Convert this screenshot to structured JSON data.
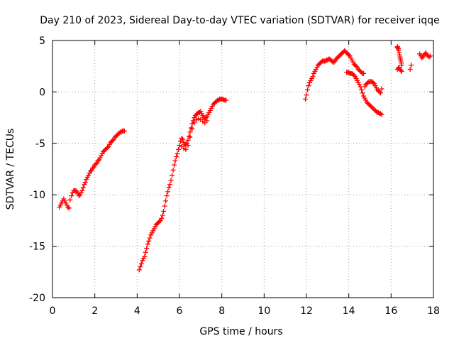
{
  "chart_data": {
    "type": "scatter",
    "title": "Day 210 of 2023, Sidereal Day-to-day VTEC variation (SDTVAR) for receiver iqqe",
    "xlabel": "GPS time / hours",
    "ylabel": "SDTVAR / TECUs",
    "xlim": [
      0,
      18
    ],
    "ylim": [
      -20,
      5
    ],
    "xticks": [
      0,
      2,
      4,
      6,
      8,
      10,
      12,
      14,
      16,
      18
    ],
    "yticks": [
      5,
      0,
      -5,
      -10,
      -15,
      -20
    ],
    "xtick_labels": [
      "0",
      "2",
      "4",
      "6",
      "8",
      "10",
      "12",
      "14",
      "16",
      "18"
    ],
    "ytick_labels": [
      "5",
      "0",
      "-5",
      "-10",
      "-15",
      "-20"
    ],
    "grid": true,
    "marker": "+",
    "color": "#ff0000",
    "series": [
      {
        "name": "segment-1",
        "x": [
          0.33,
          0.38,
          0.43,
          0.48,
          0.53,
          0.58,
          0.63,
          0.68,
          0.73,
          0.78,
          0.83,
          0.9,
          0.95,
          1.0,
          1.05,
          1.1,
          1.15,
          1.2,
          1.25,
          1.3,
          1.35,
          1.4,
          1.45,
          1.5,
          1.55,
          1.6,
          1.65,
          1.7,
          1.75,
          1.8,
          1.85,
          1.9,
          1.95,
          2.0,
          2.05,
          2.1,
          2.15,
          2.2,
          2.25,
          2.3,
          2.35,
          2.4,
          2.45,
          2.5,
          2.55,
          2.6,
          2.65,
          2.7,
          2.75,
          2.8,
          2.85,
          2.9,
          2.95,
          3.0,
          3.05,
          3.1,
          3.15,
          3.2,
          3.25,
          3.3,
          3.35,
          3.4
        ],
        "y": [
          -11.2,
          -11.0,
          -10.8,
          -10.6,
          -10.4,
          -10.6,
          -10.8,
          -11.0,
          -11.2,
          -11.3,
          -10.5,
          -10.1,
          -9.8,
          -9.6,
          -9.6,
          -9.6,
          -9.7,
          -9.9,
          -10.1,
          -10.0,
          -9.8,
          -9.6,
          -9.3,
          -9.0,
          -8.8,
          -8.5,
          -8.3,
          -8.1,
          -7.9,
          -7.7,
          -7.6,
          -7.4,
          -7.3,
          -7.1,
          -7.0,
          -6.9,
          -6.7,
          -6.6,
          -6.4,
          -6.2,
          -6.0,
          -5.8,
          -5.7,
          -5.6,
          -5.5,
          -5.4,
          -5.3,
          -5.1,
          -4.9,
          -4.8,
          -4.7,
          -4.6,
          -4.4,
          -4.3,
          -4.2,
          -4.1,
          -4.0,
          -3.9,
          -3.9,
          -3.8,
          -3.8,
          -3.8
        ]
      },
      {
        "name": "segment-2",
        "x": [
          4.1,
          4.15,
          4.2,
          4.25,
          4.3,
          4.35,
          4.4,
          4.45,
          4.5,
          4.55,
          4.6,
          4.65,
          4.7,
          4.75,
          4.8,
          4.85,
          4.9,
          4.95,
          5.0,
          5.05,
          5.1,
          5.15,
          5.2,
          5.25,
          5.3,
          5.35,
          5.4,
          5.45,
          5.5,
          5.55,
          5.6,
          5.65,
          5.7,
          5.75,
          5.8,
          5.85,
          5.9,
          5.95,
          6.0,
          6.05,
          6.1,
          6.15,
          6.2,
          6.25,
          6.3,
          6.35,
          6.4,
          6.45,
          6.5,
          6.55,
          6.6,
          6.65,
          6.7,
          6.75,
          6.8,
          6.85,
          6.9,
          6.95,
          7.0,
          7.05,
          7.1,
          7.15,
          7.2,
          7.25,
          7.3,
          7.35,
          7.4,
          7.45,
          7.5,
          7.55,
          7.6,
          7.65,
          7.7,
          7.75,
          7.8,
          7.85,
          7.9,
          7.95,
          8.0,
          8.05,
          8.1,
          8.15,
          8.2,
          6.1,
          6.2,
          6.3,
          6.4,
          6.5,
          6.6,
          6.7,
          6.8,
          6.9,
          7.0,
          7.1,
          7.2,
          7.3
        ],
        "y": [
          -17.3,
          -17.0,
          -16.7,
          -16.4,
          -16.2,
          -16.0,
          -15.6,
          -15.2,
          -14.8,
          -14.5,
          -14.2,
          -13.9,
          -13.7,
          -13.5,
          -13.3,
          -13.1,
          -12.9,
          -12.8,
          -12.7,
          -12.6,
          -12.5,
          -12.3,
          -12.0,
          -11.6,
          -11.1,
          -10.6,
          -10.1,
          -9.7,
          -9.3,
          -9.0,
          -8.6,
          -8.1,
          -7.6,
          -7.1,
          -6.7,
          -6.3,
          -6.0,
          -5.6,
          -5.2,
          -4.8,
          -4.5,
          -4.6,
          -4.9,
          -5.1,
          -5.2,
          -5.0,
          -4.7,
          -4.3,
          -3.9,
          -3.5,
          -3.1,
          -2.8,
          -2.5,
          -2.3,
          -2.2,
          -2.1,
          -2.0,
          -2.0,
          -1.9,
          -2.1,
          -2.3,
          -2.5,
          -2.6,
          -2.5,
          -2.4,
          -2.2,
          -2.0,
          -1.8,
          -1.6,
          -1.4,
          -1.2,
          -1.1,
          -1.0,
          -0.9,
          -0.8,
          -0.8,
          -0.7,
          -0.7,
          -0.7,
          -0.7,
          -0.8,
          -0.8,
          -0.8,
          -5.3,
          -5.5,
          -5.6,
          -5.2,
          -4.4,
          -3.6,
          -3.0,
          -2.7,
          -2.6,
          -2.7,
          -2.9,
          -3.0,
          -2.8
        ]
      },
      {
        "name": "segment-3",
        "x": [
          11.95,
          12.0,
          12.05,
          12.1,
          12.15,
          12.2,
          12.25,
          12.3,
          12.35,
          12.4,
          12.45,
          12.5,
          12.55,
          12.6,
          12.65,
          12.7,
          12.75,
          12.8,
          12.85,
          12.9,
          12.95,
          13.0,
          13.05,
          13.1,
          13.15,
          13.2,
          13.25,
          13.3,
          13.35,
          13.4,
          13.45,
          13.5,
          13.55,
          13.6,
          13.65,
          13.7,
          13.75,
          13.8,
          13.85,
          13.9,
          13.95,
          14.0,
          14.05,
          14.1,
          14.15,
          14.2,
          14.25,
          14.3,
          14.35,
          14.4,
          14.45,
          14.5,
          14.55,
          14.6,
          14.65,
          14.7,
          13.9,
          13.95,
          14.0,
          14.05,
          14.1,
          14.15,
          14.2,
          14.25,
          14.3,
          14.35,
          14.4,
          14.45,
          14.5,
          14.55,
          14.6,
          14.65,
          14.7,
          14.75,
          14.8,
          14.85,
          14.9,
          14.95,
          15.0,
          15.05,
          15.1,
          15.15,
          15.2,
          15.25,
          15.3,
          15.35,
          15.4,
          15.45,
          15.5,
          15.55,
          14.75,
          14.8,
          14.85,
          14.9,
          14.95,
          15.0,
          15.05,
          15.1,
          15.15,
          15.2,
          15.25,
          15.3,
          15.35,
          15.4,
          15.45,
          15.5,
          15.55
        ],
        "y": [
          -0.7,
          -0.3,
          0.2,
          0.6,
          0.9,
          1.1,
          1.3,
          1.5,
          1.8,
          2.0,
          2.2,
          2.4,
          2.6,
          2.7,
          2.8,
          2.9,
          3.0,
          3.0,
          3.0,
          3.0,
          3.1,
          3.1,
          3.2,
          3.2,
          3.1,
          3.0,
          2.9,
          2.9,
          3.0,
          3.2,
          3.3,
          3.4,
          3.5,
          3.6,
          3.7,
          3.8,
          3.9,
          4.0,
          3.9,
          3.8,
          3.7,
          3.6,
          3.5,
          3.3,
          3.1,
          2.9,
          2.7,
          2.6,
          2.5,
          2.4,
          2.2,
          2.1,
          2.0,
          1.9,
          1.8,
          1.8,
          1.9,
          1.9,
          1.9,
          1.8,
          1.8,
          1.8,
          1.7,
          1.6,
          1.5,
          1.3,
          1.1,
          0.9,
          0.7,
          0.5,
          0.2,
          -0.1,
          -0.4,
          -0.6,
          -0.8,
          -1.0,
          -1.1,
          -1.2,
          -1.3,
          -1.4,
          -1.5,
          -1.6,
          -1.7,
          -1.8,
          -1.9,
          -2.0,
          -2.0,
          -2.1,
          -2.1,
          -2.2,
          0.5,
          0.7,
          0.8,
          0.9,
          1.0,
          1.0,
          1.0,
          1.0,
          0.9,
          0.8,
          0.6,
          0.4,
          0.2,
          0.1,
          0.0,
          -0.1,
          0.3
        ]
      },
      {
        "name": "segment-4",
        "x": [
          16.28,
          16.3,
          16.32,
          16.34,
          16.36,
          16.38,
          16.4,
          16.42,
          16.44,
          16.46,
          16.48,
          16.5,
          16.3,
          16.34,
          16.38,
          16.42,
          16.46,
          16.5,
          16.9,
          16.95
        ],
        "y": [
          4.3,
          4.4,
          4.3,
          4.2,
          4.0,
          3.8,
          3.6,
          3.4,
          3.2,
          3.0,
          2.8,
          2.6,
          2.2,
          2.3,
          2.4,
          2.2,
          2.1,
          2.0,
          2.2,
          2.6
        ]
      },
      {
        "name": "segment-5",
        "x": [
          17.35,
          17.4,
          17.45,
          17.5,
          17.55,
          17.6,
          17.65,
          17.7,
          17.75,
          17.8,
          17.85
        ],
        "y": [
          3.7,
          3.5,
          3.3,
          3.4,
          3.6,
          3.7,
          3.8,
          3.6,
          3.5,
          3.4,
          3.5
        ]
      }
    ]
  }
}
